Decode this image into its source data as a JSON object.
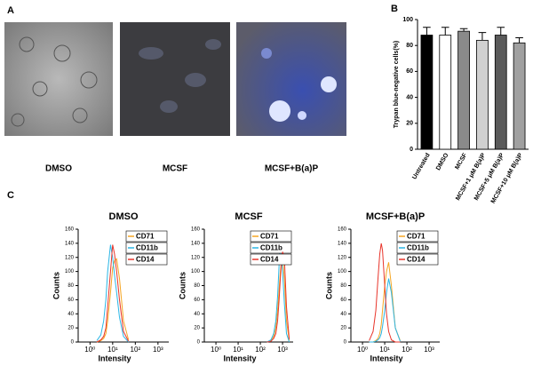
{
  "figure": {
    "panel_labels": [
      "A",
      "B",
      "C"
    ],
    "image_captions": [
      "DMSO",
      "MCSF",
      "MCSF+B(a)P"
    ]
  },
  "chart_data": [
    {
      "type": "bar",
      "ylabel": "Trypan blue-negative cells(%)",
      "categories": [
        "Untreated",
        "DMSO",
        "MCSF",
        "MCSF+1 μM B(a)P",
        "MCSF+5 μM B(a)P",
        "MCSF+10 μM B(a)P"
      ],
      "values": [
        88,
        88,
        91,
        84,
        88,
        82
      ],
      "errors": [
        6,
        6,
        2,
        6,
        6,
        4
      ],
      "colors": [
        "#000000",
        "#ffffff",
        "#8a8a8a",
        "#d0d0d0",
        "#5a5a5a",
        "#a0a0a0"
      ],
      "ylim": [
        0,
        100
      ],
      "yticks": [
        0,
        20,
        40,
        60,
        80,
        100
      ]
    },
    {
      "type": "line",
      "title": "DMSO",
      "xlabel": "Intensity",
      "ylabel": "Counts",
      "xscale": "log",
      "legend": "upper right",
      "x": [
        2,
        3,
        4,
        5,
        6,
        8,
        10,
        12,
        15,
        20,
        30,
        50
      ],
      "series": [
        {
          "name": "CD71",
          "color": "#f5a623",
          "values": [
            0,
            2,
            5,
            12,
            30,
            70,
            105,
            115,
            118,
            90,
            30,
            3
          ]
        },
        {
          "name": "CD11b",
          "color": "#2bb6e6",
          "values": [
            2,
            10,
            30,
            60,
            100,
            138,
            120,
            95,
            70,
            35,
            8,
            0
          ]
        },
        {
          "name": "CD14",
          "color": "#e8352b",
          "values": [
            0,
            3,
            8,
            20,
            50,
            100,
            138,
            125,
            100,
            60,
            15,
            1
          ]
        }
      ],
      "xlim": [
        0.3,
        3000
      ],
      "xticks": [
        {
          "value": 1,
          "label": "10⁰"
        },
        {
          "value": 10,
          "label": "10¹"
        },
        {
          "value": 100,
          "label": "10²"
        },
        {
          "value": 1000,
          "label": "10³"
        }
      ],
      "ylim": [
        0,
        160
      ],
      "yticks": [
        0,
        20,
        40,
        60,
        80,
        100,
        120,
        140,
        160
      ]
    },
    {
      "type": "line",
      "title": "MCSF",
      "xlabel": "Intensity",
      "ylabel": "Counts",
      "xscale": "log",
      "legend": "upper right",
      "x": [
        200,
        300,
        400,
        500,
        600,
        700,
        800,
        900,
        1000,
        1200,
        1500,
        2000
      ],
      "series": [
        {
          "name": "CD71",
          "color": "#f5a623",
          "values": [
            0,
            2,
            8,
            20,
            45,
            75,
            100,
            115,
            118,
            90,
            30,
            2
          ]
        },
        {
          "name": "CD11b",
          "color": "#2bb6e6",
          "values": [
            0,
            3,
            12,
            30,
            65,
            110,
            138,
            130,
            100,
            55,
            12,
            0
          ]
        },
        {
          "name": "CD14",
          "color": "#e8352b",
          "values": [
            0,
            1,
            5,
            12,
            30,
            60,
            90,
            115,
            128,
            120,
            50,
            4
          ]
        }
      ],
      "xlim": [
        0.3,
        3000
      ],
      "xticks": [
        {
          "value": 1,
          "label": "10⁰"
        },
        {
          "value": 10,
          "label": "10¹"
        },
        {
          "value": 100,
          "label": "10²"
        },
        {
          "value": 1000,
          "label": "10³"
        }
      ],
      "ylim": [
        0,
        160
      ],
      "yticks": [
        0,
        20,
        40,
        60,
        80,
        100,
        120,
        140,
        160
      ]
    },
    {
      "type": "line",
      "title": "MCSF+B(a)P",
      "xlabel": "Intensity",
      "ylabel": "Counts",
      "xscale": "log",
      "legend": "upper right",
      "x": [
        2,
        3,
        4,
        5,
        6,
        7,
        8,
        10,
        12,
        15,
        20,
        30,
        50
      ],
      "series": [
        {
          "name": "CD71",
          "color": "#f5a623",
          "values": [
            0,
            0,
            2,
            5,
            12,
            25,
            45,
            80,
            100,
            113,
            80,
            20,
            2
          ]
        },
        {
          "name": "CD11b",
          "color": "#2bb6e6",
          "values": [
            0,
            0,
            1,
            3,
            6,
            12,
            22,
            45,
            70,
            90,
            70,
            20,
            1
          ]
        },
        {
          "name": "CD14",
          "color": "#e8352b",
          "values": [
            2,
            15,
            45,
            90,
            125,
            140,
            130,
            80,
            40,
            15,
            3,
            0,
            0
          ]
        }
      ],
      "xlim": [
        0.3,
        3000
      ],
      "xticks": [
        {
          "value": 1,
          "label": "10⁰"
        },
        {
          "value": 10,
          "label": "10¹"
        },
        {
          "value": 100,
          "label": "10²"
        },
        {
          "value": 1000,
          "label": "10³"
        }
      ],
      "ylim": [
        0,
        160
      ],
      "yticks": [
        0,
        20,
        40,
        60,
        80,
        100,
        120,
        140,
        160
      ]
    }
  ]
}
